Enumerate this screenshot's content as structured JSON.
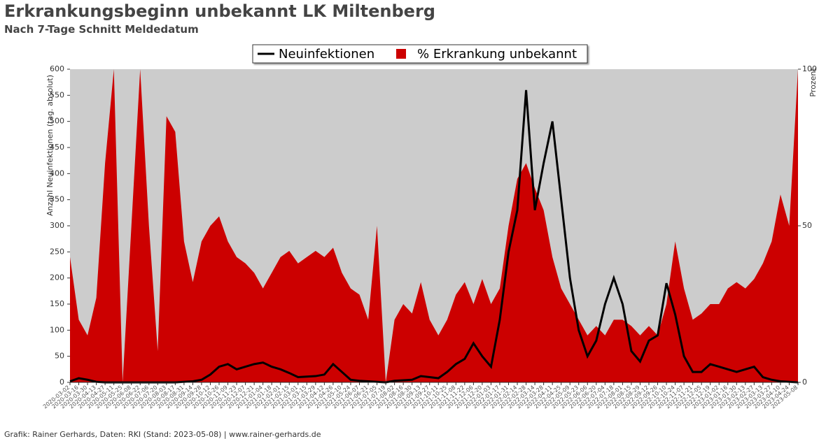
{
  "chart_data": {
    "type": "line-area",
    "title": "Erkrankungsbeginn unbekannt LK Miltenberg",
    "subtitle": "Nach 7-Tage Schnitt Meldedatum",
    "ylabel": "Anzahl Neuinfektionen (tag. absolut)",
    "y2label": "Prozent",
    "footer": "Grafik: Rainer Gerhards, Daten: RKI (Stand: 2023-05-08) | www.rainer-gerhards.de",
    "legend": "top",
    "background": "#cccccc",
    "x": [
      "2020-03-02",
      "2020-03-16",
      "2020-03-30",
      "2020-04-13",
      "2020-04-27",
      "2020-05-11",
      "2020-05-25",
      "2020-06-08",
      "2020-06-22",
      "2020-07-06",
      "2020-07-20",
      "2020-08-03",
      "2020-08-17",
      "2020-08-31",
      "2020-09-14",
      "2020-09-28",
      "2020-10-12",
      "2020-10-26",
      "2020-11-09",
      "2020-11-23",
      "2020-12-07",
      "2020-12-21",
      "2021-01-04",
      "2021-01-18",
      "2021-02-01",
      "2021-02-15",
      "2021-03-01",
      "2021-03-15",
      "2021-03-29",
      "2021-04-12",
      "2021-04-26",
      "2021-05-10",
      "2021-05-24",
      "2021-06-07",
      "2021-06-21",
      "2021-07-05",
      "2021-07-19",
      "2021-08-02",
      "2021-08-16",
      "2021-08-30",
      "2021-09-13",
      "2021-09-27",
      "2021-10-11",
      "2021-10-25",
      "2021-11-08",
      "2021-11-22",
      "2021-12-06",
      "2021-12-20",
      "2022-01-03",
      "2022-01-17",
      "2022-01-31",
      "2022-02-14",
      "2022-02-28",
      "2022-03-14",
      "2022-03-28",
      "2022-04-11",
      "2022-04-25",
      "2022-05-09",
      "2022-05-23",
      "2022-06-06",
      "2022-06-20",
      "2022-07-04",
      "2022-07-18",
      "2022-08-01",
      "2022-08-15",
      "2022-08-29",
      "2022-09-12",
      "2022-09-26",
      "2022-10-10",
      "2022-10-24",
      "2022-11-07",
      "2022-11-21",
      "2022-12-05",
      "2022-12-19",
      "2023-01-02",
      "2023-01-16",
      "2023-01-30",
      "2023-02-13",
      "2023-02-27",
      "2023-03-13",
      "2023-03-27",
      "2023-04-10",
      "2023-04-24",
      "2023-05-08"
    ],
    "ylim": [
      0,
      600
    ],
    "yticks": [
      0,
      50,
      100,
      150,
      200,
      250,
      300,
      350,
      400,
      450,
      500,
      550,
      600
    ],
    "y2lim": [
      0,
      100
    ],
    "y2ticks": [
      0,
      50,
      100
    ],
    "series": [
      {
        "name": "Neuinfektionen",
        "color": "#000000",
        "values": [
          2,
          8,
          5,
          1,
          0,
          0,
          0,
          0,
          0,
          0,
          0,
          0,
          0,
          1,
          2,
          5,
          15,
          30,
          35,
          25,
          30,
          35,
          38,
          30,
          25,
          18,
          10,
          11,
          12,
          15,
          35,
          20,
          5,
          3,
          2,
          1,
          0,
          3,
          4,
          5,
          12,
          10,
          8,
          20,
          35,
          45,
          75,
          50,
          30,
          120,
          250,
          330,
          560,
          330,
          420,
          500,
          350,
          200,
          100,
          50,
          80,
          150,
          200,
          150,
          60,
          40,
          80,
          90,
          190,
          130,
          50,
          20,
          20,
          35,
          30,
          25,
          20,
          25,
          30,
          10,
          5,
          2,
          1,
          0
        ]
      },
      {
        "name": "% Erkrankung unbekannt",
        "color": "#cc0000",
        "axis": "y2",
        "values": [
          40,
          20,
          15,
          27,
          70,
          100,
          0,
          50,
          100,
          50,
          10,
          85,
          80,
          45,
          32,
          45,
          50,
          53,
          45,
          40,
          38,
          35,
          30,
          35,
          40,
          42,
          38,
          40,
          42,
          40,
          43,
          35,
          30,
          28,
          20,
          50,
          0,
          20,
          25,
          22,
          32,
          20,
          15,
          20,
          28,
          32,
          25,
          33,
          25,
          30,
          50,
          65,
          70,
          62,
          55,
          40,
          30,
          25,
          20,
          15,
          18,
          15,
          20,
          20,
          18,
          15,
          18,
          15,
          25,
          45,
          30,
          20,
          22,
          25,
          25,
          30,
          32,
          30,
          33,
          38,
          45,
          60,
          50,
          100
        ]
      }
    ]
  }
}
